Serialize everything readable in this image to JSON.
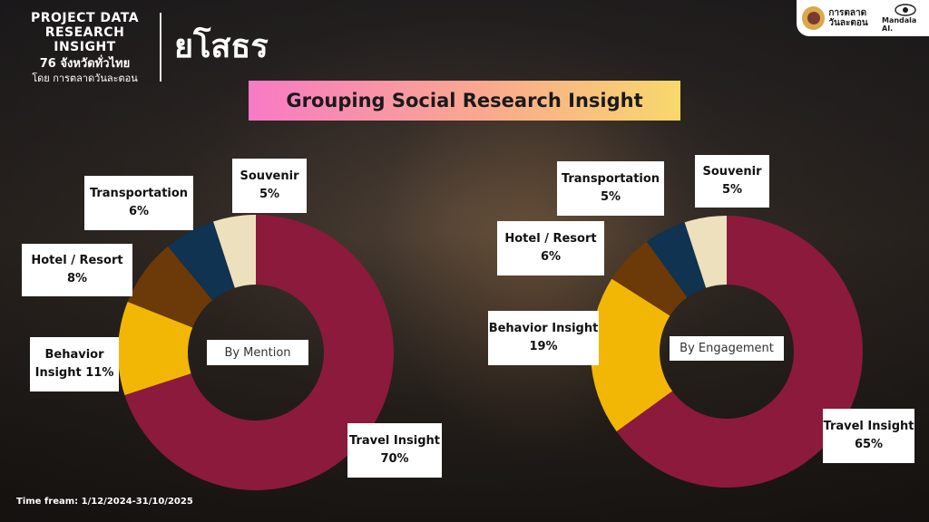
{
  "brand": {
    "line1": "PROJECT DATA",
    "line2": "RESEARCH INSIGHT",
    "line3": "76 จังหวัดทั่วไทย",
    "line4": "โดย การตลาดวันละตอน"
  },
  "province": "ยโสธร",
  "logos": {
    "marketing_name_1": "การตลาด",
    "marketing_name_2": "วันละตอน",
    "mandala": "Mandala AI."
  },
  "title": "Grouping Social Research Insight",
  "timeframe": "Time fream: 1/12/2024-31/10/2025",
  "colors": {
    "Travel Insight": "#8b1a3c",
    "Behavior Insight": "#f2b705",
    "Hotel / Resort": "#6b3a08",
    "Transportation": "#0f3350",
    "Souvenir": "#ede0bd"
  },
  "chart_data": [
    {
      "type": "pie",
      "variant": "donut",
      "center_label": "By Mention",
      "categories": [
        "Travel Insight",
        "Behavior Insight",
        "Hotel / Resort",
        "Transportation",
        "Souvenir"
      ],
      "values": [
        70,
        11,
        8,
        6,
        5
      ],
      "label_texts": [
        [
          "Travel Insight",
          "70%"
        ],
        [
          "Behavior",
          "Insight 11%"
        ],
        [
          "Hotel / Resort",
          "8%"
        ],
        [
          "Transportation",
          "6%"
        ],
        [
          "Souvenir",
          "5%"
        ]
      ]
    },
    {
      "type": "pie",
      "variant": "donut",
      "center_label": "By Engagement",
      "categories": [
        "Travel Insight",
        "Behavior Insight",
        "Hotel / Resort",
        "Transportation",
        "Souvenir"
      ],
      "values": [
        65,
        19,
        6,
        5,
        5
      ],
      "label_texts": [
        [
          "Travel Insight",
          "65%"
        ],
        [
          "Behavior Insight",
          "19%"
        ],
        [
          "Hotel / Resort",
          "6%"
        ],
        [
          "Transportation",
          "5%"
        ],
        [
          "Souvenir",
          "5%"
        ]
      ]
    }
  ]
}
